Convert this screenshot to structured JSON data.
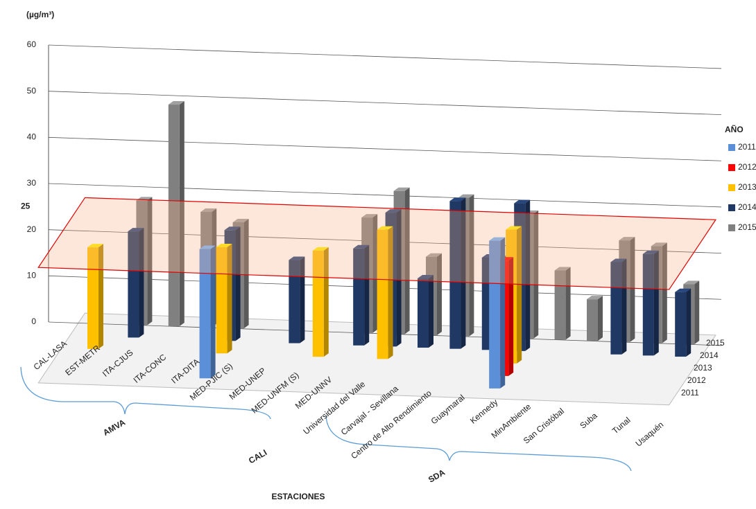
{
  "chart_data": {
    "type": "bar3d",
    "y_label": "(µg/m³)",
    "x_label": "ESTACIONES",
    "legend_title": "AÑO",
    "reference": 25,
    "groups": [
      "AMVA",
      "CALI",
      "SDA"
    ],
    "categories": [
      "CAL-LASA",
      "EST-METR",
      "ITA-CJUS",
      "ITA-CONC",
      "ITA-DITA",
      "MED-PJIC (S)",
      "MED-UNEP",
      "MED-UNFM (S)",
      "MED-UNNV",
      "Universidad del Valle",
      "Carvajal - Sevillana",
      "Centro de Alto Rendimiento",
      "Guaymaral",
      "Kennedy",
      "MinAmbiente",
      "San Cristóbal",
      "Suba",
      "Tunal",
      "Usaquén"
    ],
    "series": [
      {
        "name": "2011",
        "color": "#5b8fd8",
        "values": [
          null,
          null,
          null,
          null,
          28,
          null,
          null,
          null,
          null,
          null,
          null,
          null,
          null,
          32,
          null,
          null,
          null,
          null,
          null
        ]
      },
      {
        "name": "2012",
        "color": "#ff0000",
        "values": [
          null,
          null,
          null,
          null,
          null,
          null,
          null,
          null,
          null,
          null,
          null,
          null,
          null,
          25,
          null,
          null,
          null,
          null,
          null
        ]
      },
      {
        "name": "2013",
        "color": "#ffc000",
        "values": [
          22,
          null,
          null,
          null,
          23,
          null,
          null,
          23,
          null,
          28,
          null,
          null,
          null,
          29,
          null,
          null,
          null,
          null,
          null
        ]
      },
      {
        "name": "2014",
        "color": "#1f3864",
        "values": [
          null,
          23,
          null,
          null,
          24,
          null,
          18,
          null,
          21,
          29,
          15,
          32,
          20,
          32,
          null,
          null,
          20,
          22,
          14
        ]
      },
      {
        "name": "2015",
        "color": "#808080",
        "values": [
          null,
          27,
          48,
          25,
          23,
          null,
          null,
          null,
          25,
          31,
          17,
          30,
          17,
          27,
          15,
          9,
          22,
          21,
          13
        ]
      }
    ],
    "ylim": [
      0,
      60
    ],
    "yticks": [
      0,
      10,
      20,
      30,
      40,
      50,
      60
    ],
    "grid": true
  }
}
